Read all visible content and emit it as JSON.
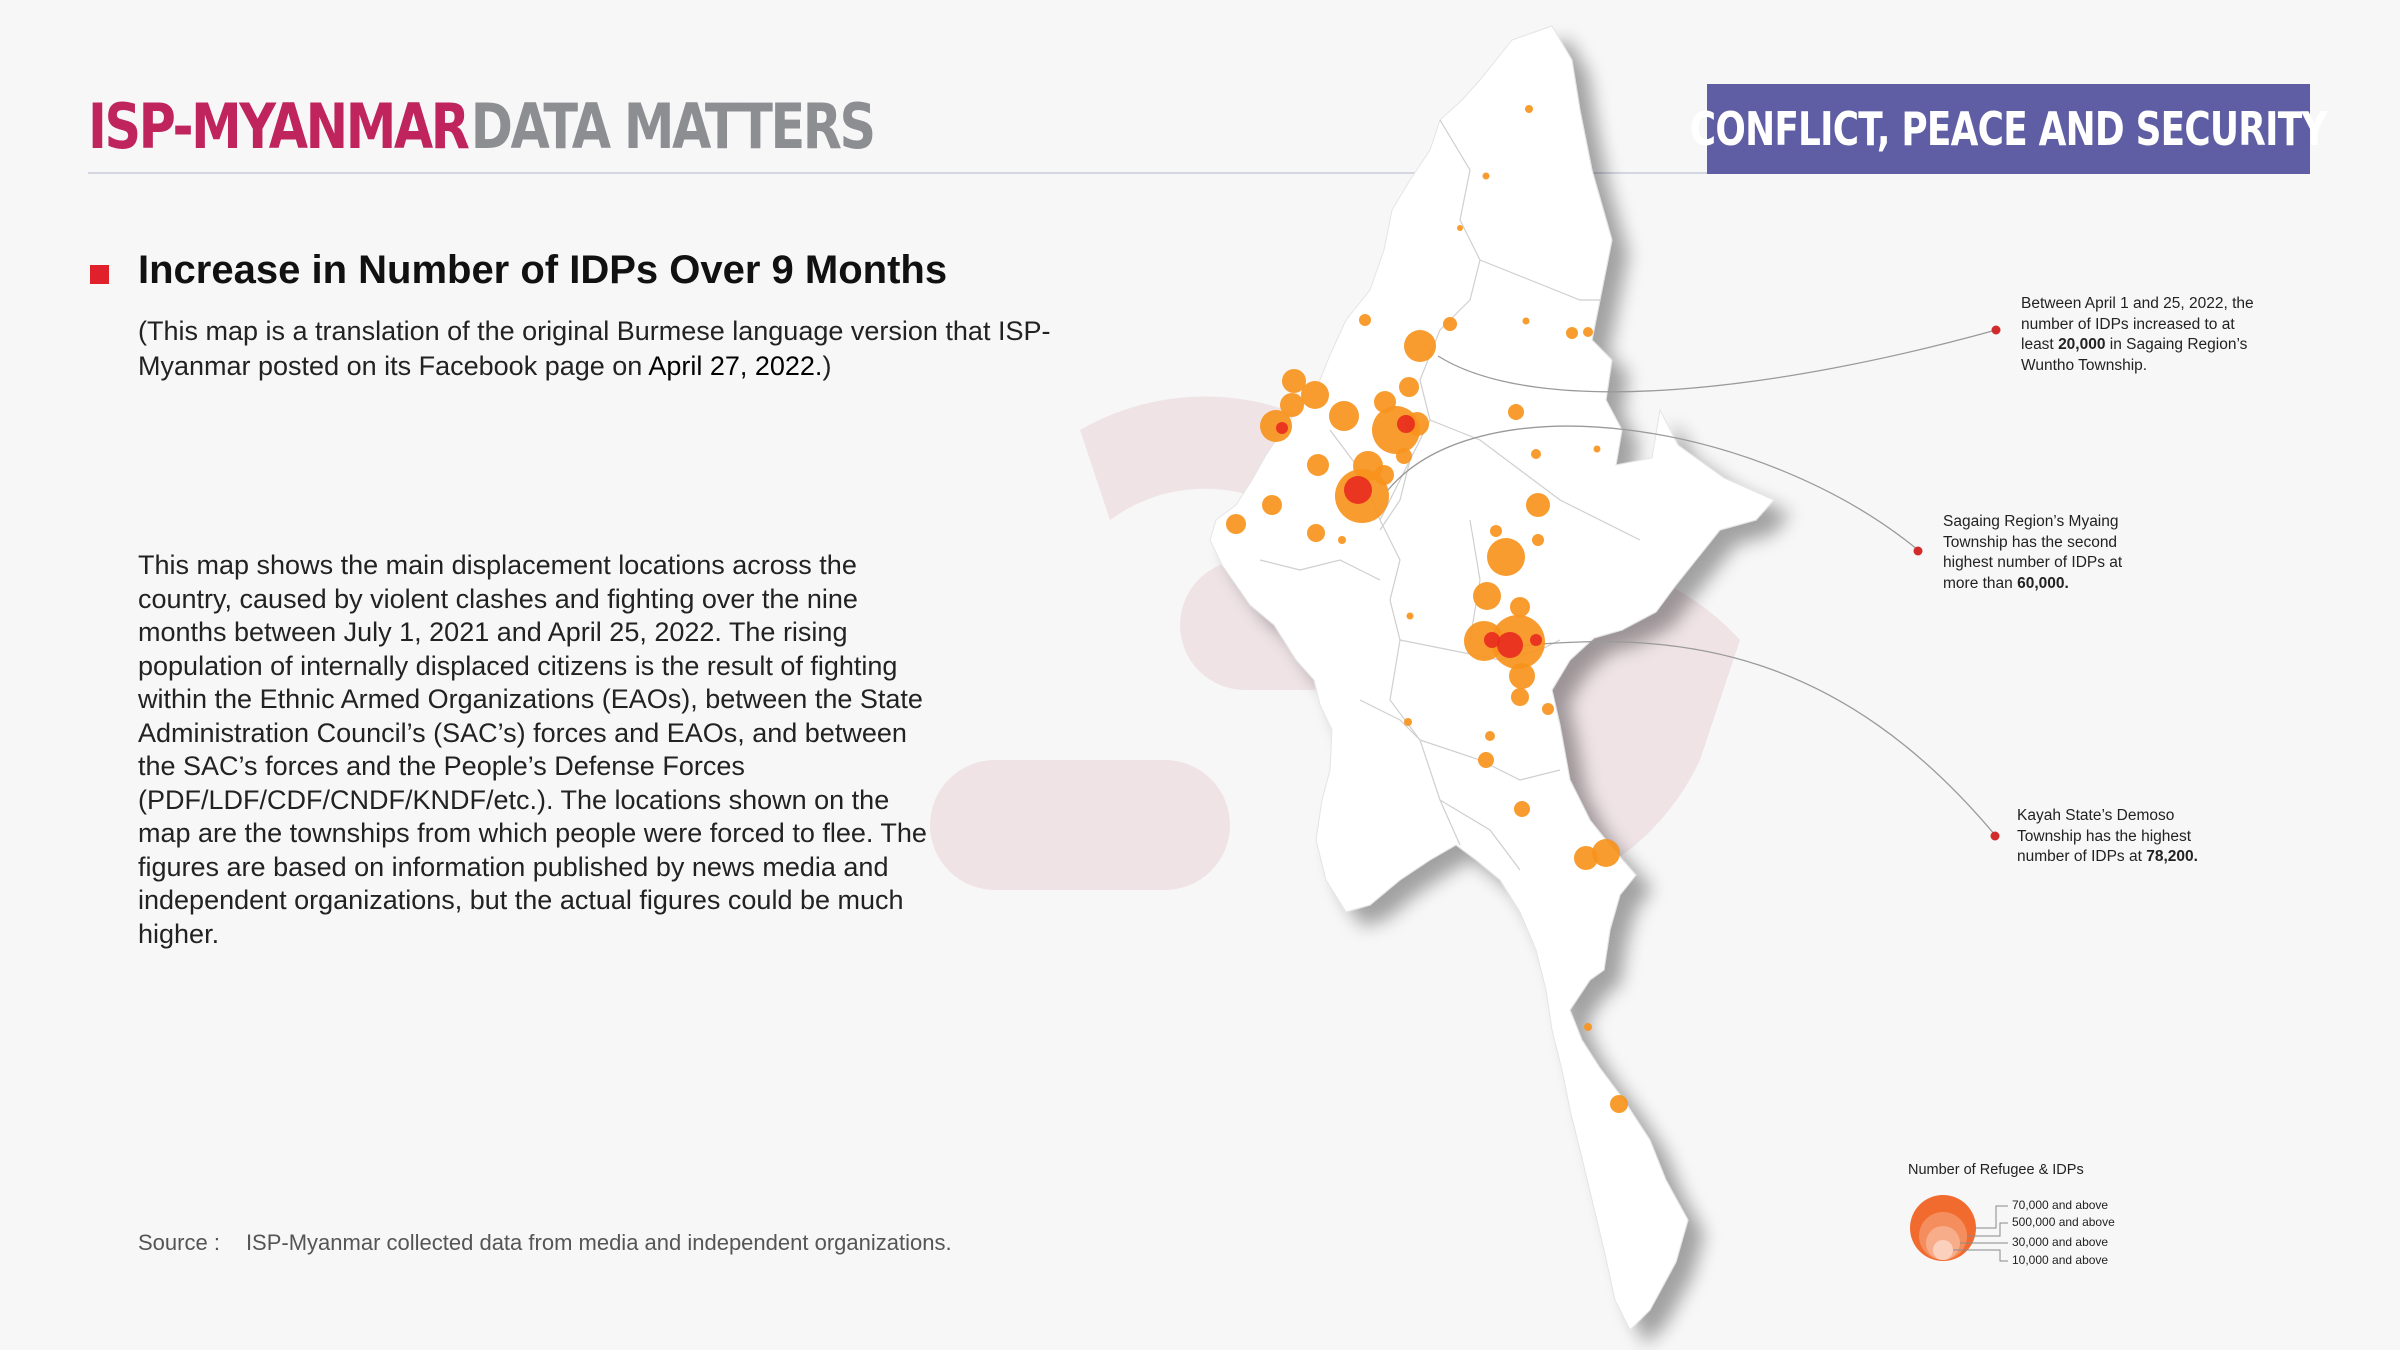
{
  "header": {
    "brand_primary": "ISP-MYANMAR",
    "brand_secondary": "DATA MATTERS",
    "category_banner": "CONFLICT, PEACE AND SECURITY"
  },
  "title": "Increase in Number of IDPs Over 9 Months",
  "note": {
    "text": "(This map is a translation of the original Burmese language version that ISP-Myanmar posted on its Facebook page on ",
    "date": "April 27, 2022.",
    "close": ")"
  },
  "body_text": "This map shows the main displacement locations across the country, caused by violent clashes and fighting over the nine months between July 1, 2021 and April 25, 2022. The rising population of internally displaced citizens is the result of fighting within the Ethnic Armed Organizations (EAOs), between the State Administration Council’s (SAC’s) forces and EAOs, and between the SAC’s forces and the People’s Defense Forces (PDF/LDF/CDF/CNDF/KNDF/etc.). The locations shown on the map are the townships from which people were forced to flee. The figures are based on information published by news media and independent organizations, but the actual figures could be much higher.",
  "source": {
    "label": "Source :",
    "text": "ISP-Myanmar collected data from media and independent organizations."
  },
  "callouts": [
    {
      "pre": "Between April 1 and 25, 2022, the number of IDPs increased to at least ",
      "bold": "20,000",
      "post": " in Sagaing Region’s Wuntho Township."
    },
    {
      "pre": "Sagaing Region’s Myaing Township has the second highest number of IDPs at more than ",
      "bold": "60,000.",
      "post": ""
    },
    {
      "pre": "Kayah State’s Demoso Township has the highest number of IDPs at ",
      "bold": "78,200.",
      "post": ""
    }
  ],
  "legend": {
    "title": "Number of Refugee & IDPs",
    "items": [
      "70,000 and above",
      "500,000 and above",
      "30,000 and above",
      "10,000 and above"
    ]
  },
  "colors": {
    "brand_magenta": "#c0245d",
    "brand_gray": "#8d8e92",
    "banner_bg": "#5f5da4",
    "bullet_red": "#e0202b",
    "idp_orange": "#f7941d",
    "idp_red": "#e8251f"
  },
  "icons": {
    "bullet": "red-square-bullet",
    "callout_marker": "red-dot-marker"
  }
}
